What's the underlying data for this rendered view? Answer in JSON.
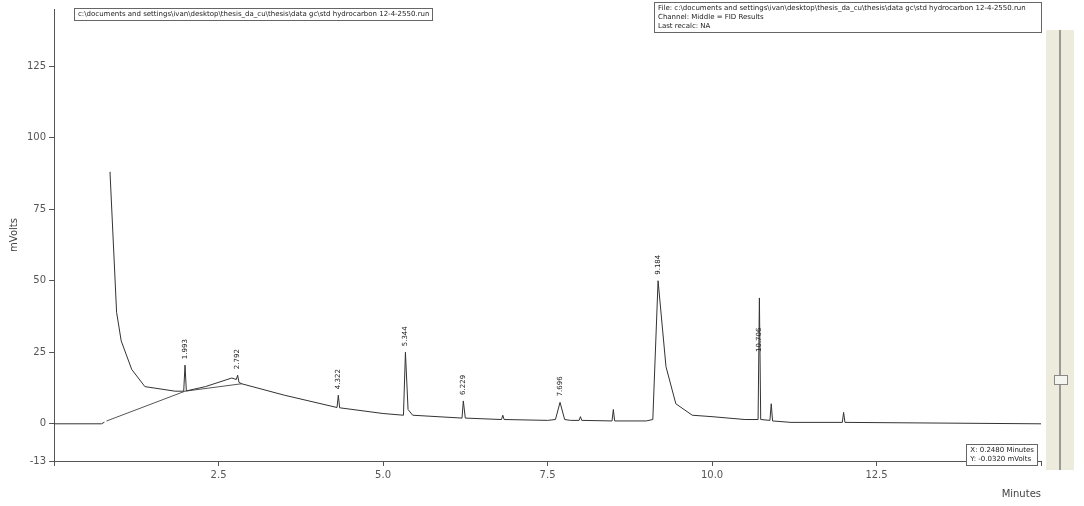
{
  "chart_data": {
    "type": "line",
    "xlabel": "Minutes",
    "ylabel": "mVolts",
    "xlim": [
      0,
      15
    ],
    "xticks": [
      {
        "value": 0,
        "label": null
      },
      {
        "value": 2.5,
        "label": "2.5"
      },
      {
        "value": 5,
        "label": "5.0"
      },
      {
        "value": 7.5,
        "label": "7.5"
      },
      {
        "value": 10,
        "label": "10.0"
      },
      {
        "value": 12.5,
        "label": "12.5"
      },
      {
        "value": 15,
        "label": null
      }
    ],
    "ylim": [
      -13,
      145
    ],
    "yticks": [
      -13,
      0,
      25,
      50,
      75,
      100,
      125
    ],
    "grid": false,
    "legend": false,
    "marker": "none",
    "line_style": "solid",
    "series": [
      {
        "color": "#333333",
        "x": [
          0,
          0.72,
          0.76,
          0.78,
          0.82,
          0.85,
          0.95,
          1.02,
          1.18,
          1.38,
          1.84,
          1.97,
          1.99,
          2.01,
          2.3,
          2.7,
          2.77,
          2.79,
          2.81,
          2.85,
          3.5,
          4.3,
          4.32,
          4.34,
          5.0,
          5.31,
          5.34,
          5.38,
          5.45,
          6.2,
          6.22,
          6.25,
          6.8,
          6.82,
          6.84,
          7.5,
          7.62,
          7.69,
          7.76,
          7.85,
          7.98,
          8.0,
          8.02,
          8.48,
          8.5,
          8.52,
          9.0,
          9.1,
          9.18,
          9.3,
          9.45,
          9.7,
          10.0,
          10.5,
          10.7,
          10.72,
          10.74,
          10.88,
          10.9,
          10.92,
          11.2,
          11.98,
          12.0,
          12.02,
          15
        ],
        "values": [
          0,
          0,
          0.5,
          null,
          null,
          88,
          39,
          29,
          19,
          13,
          11.4,
          11.4,
          20.5,
          11.5,
          13,
          16,
          15.5,
          17,
          14.5,
          14,
          10,
          5.7,
          10,
          5.6,
          3.6,
          3,
          25,
          5,
          3,
          2,
          8,
          2,
          1.5,
          3,
          1.5,
          1.2,
          1.5,
          7.5,
          1.5,
          1.2,
          1.2,
          2.5,
          1.2,
          1,
          5,
          1,
          1,
          1.5,
          50,
          20,
          7,
          3,
          2.5,
          1.5,
          1.5,
          44,
          1.5,
          1.2,
          7,
          1,
          0.5,
          0.5,
          4,
          0.5,
          0
        ]
      },
      {
        "color": "#555555",
        "x": [
          0.8,
          1.99,
          2.85
        ],
        "values": [
          1,
          11.4,
          14
        ]
      }
    ],
    "annotations": [
      "c:\\documents and settings\\ivan\\desktop\\thesis_da_cu\\thesis\\data gc\\std hydrocarbon 12-4-2550.run",
      "File: c:\\documents and settings\\ivan\\desktop\\thesis_da_cu\\thesis\\data gc\\std hydrocarbon 12-4-2550.run",
      "Channel: Middle = FID  Results",
      "Last recalc: NA",
      "X: 0.2480 Minutes",
      "Y: -0.0320 mVolts",
      {
        "text": "1.993",
        "x": 1.99,
        "y": 20.5
      },
      {
        "text": "2.792",
        "x": 2.79,
        "y": 17
      },
      {
        "text": "4.322",
        "x": 4.32,
        "y": 10
      },
      {
        "text": "5.344",
        "x": 5.34,
        "y": 25
      },
      {
        "text": "6.229",
        "x": 6.22,
        "y": 8
      },
      {
        "text": "7.696",
        "x": 7.69,
        "y": 7.5
      },
      {
        "text": "9.184",
        "x": 9.18,
        "y": 50
      },
      {
        "text": "10.706",
        "x": 10.72,
        "y": 23
      }
    ]
  }
}
